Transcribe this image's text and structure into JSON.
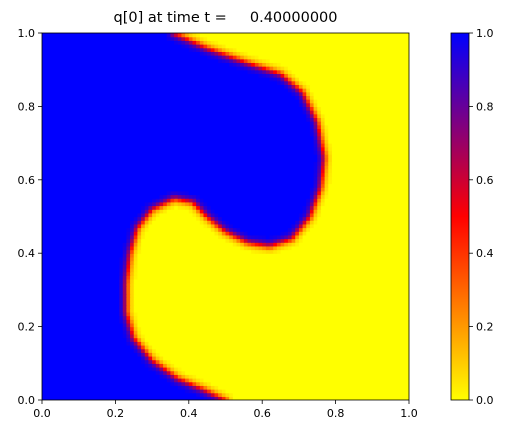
{
  "chart_data": {
    "type": "heatmap",
    "title": "q[0] at time t =     0.40000000",
    "xlabel": "",
    "ylabel": "",
    "xlim": [
      0.0,
      1.0
    ],
    "ylim": [
      0.0,
      1.0
    ],
    "x_ticks": [
      0.0,
      0.2,
      0.4,
      0.6,
      0.8,
      1.0
    ],
    "y_ticks": [
      0.0,
      0.2,
      0.4,
      0.6,
      0.8,
      1.0
    ],
    "x_tick_labels": [
      "0.0",
      "0.2",
      "0.4",
      "0.6",
      "0.8",
      "1.0"
    ],
    "y_tick_labels": [
      "0.0",
      "0.2",
      "0.4",
      "0.6",
      "0.8",
      "1.0"
    ],
    "grid": false,
    "field": "q[0]",
    "time": 0.4,
    "grid_resolution": 100,
    "value_range": [
      0.0,
      1.0
    ],
    "field_description": "Swirling interface between q=1 (blue) region on the left/upper-left and q=0 (yellow) region on the right/lower-right, rotated into a spiral about the center (0.5, 0.5).",
    "colorbar": {
      "label": "",
      "range": [
        0.0,
        1.0
      ],
      "ticks": [
        0.0,
        0.2,
        0.4,
        0.6,
        0.8,
        1.0
      ],
      "tick_labels": [
        "0.0",
        "0.2",
        "0.4",
        "0.6",
        "0.8",
        "1.0"
      ],
      "colormap": [
        {
          "value": 0.0,
          "color": "#ffff00"
        },
        {
          "value": 0.5,
          "color": "#ff0000"
        },
        {
          "value": 1.0,
          "color": "#0000ff"
        }
      ]
    }
  }
}
